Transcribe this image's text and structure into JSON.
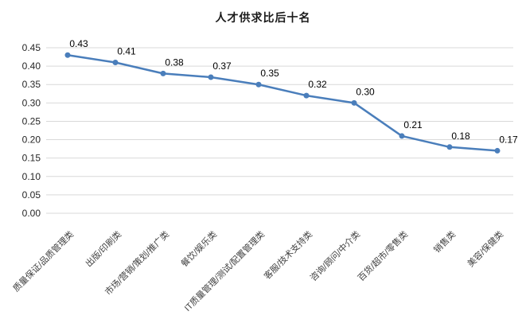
{
  "chart_data": {
    "type": "line",
    "title": "人才供求比后十名",
    "categories": [
      "质量保证/品质管理类",
      "出版/印刷类",
      "市场/营销/策划/推广类",
      "餐饮/娱乐类",
      "IT质量管理/测试/配置管理类",
      "客服/技术支持类",
      "咨询/顾问/中介类",
      "百货/超市/零售类",
      "销售类",
      "美容/保健类"
    ],
    "values": [
      0.43,
      0.41,
      0.38,
      0.37,
      0.35,
      0.32,
      0.3,
      0.21,
      0.18,
      0.17
    ],
    "value_labels": [
      "0.43",
      "0.41",
      "0.38",
      "0.37",
      "0.35",
      "0.32",
      "0.30",
      "0.21",
      "0.18",
      "0.17"
    ],
    "y_ticks": [
      "0.45",
      "0.40",
      "0.35",
      "0.30",
      "0.25",
      "0.20",
      "0.15",
      "0.10",
      "0.05",
      "0.00"
    ],
    "ylim": [
      0,
      0.45
    ],
    "y_step": 0.05,
    "grid": true,
    "legend": "none",
    "xlabel": "",
    "ylabel": "",
    "line_color": "#4A7EBB",
    "marker": "circle"
  }
}
